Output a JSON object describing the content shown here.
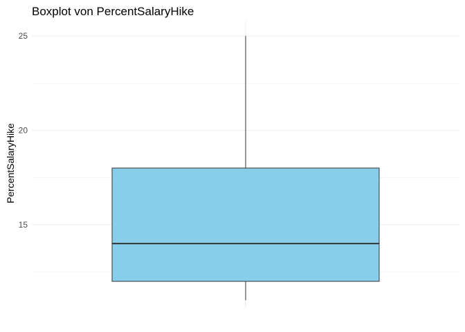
{
  "chart_data": {
    "type": "boxplot",
    "title": "Boxplot von PercentSalaryHike",
    "xlabel": "",
    "ylabel": "PercentSalaryHike",
    "ylim": [
      10.6,
      25.8
    ],
    "yticks": [
      15,
      20,
      25
    ],
    "grid": true,
    "colors": {
      "box_fill": "#87CEEB",
      "box_stroke": "#333333",
      "grid": "#ebebeb",
      "minor_grid": "#f2f2f2"
    },
    "box": {
      "min": 11,
      "q1": 12,
      "median": 14,
      "q3": 18,
      "max": 25
    }
  }
}
